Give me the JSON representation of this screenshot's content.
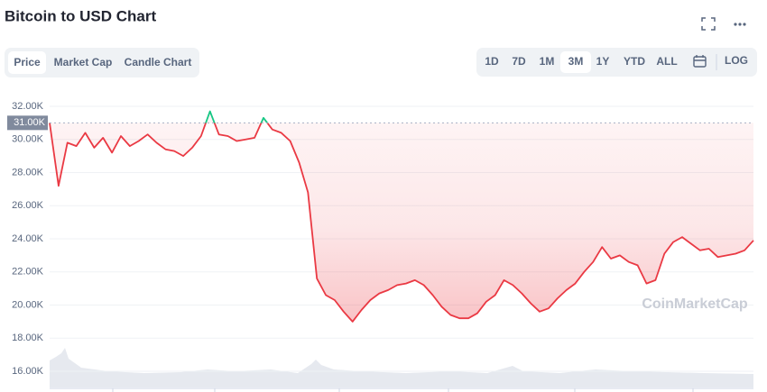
{
  "header": {
    "title": "Bitcoin to USD Chart"
  },
  "tabs": [
    "Price",
    "Market Cap",
    "Candle Chart"
  ],
  "ranges": [
    "1D",
    "7D",
    "1M",
    "3M",
    "1Y",
    "YTD",
    "ALL"
  ],
  "scale_button": "LOG",
  "chart_data": {
    "type": "line",
    "watermark": "CoinMarketCap",
    "series": [
      {
        "name": "Price",
        "color": "#ea3943",
        "color_above_reference": "#16c784",
        "values": [
          31.0,
          27.2,
          29.8,
          29.6,
          30.4,
          29.5,
          30.1,
          29.2,
          30.2,
          29.6,
          29.9,
          30.3,
          29.8,
          29.4,
          29.3,
          29.0,
          29.5,
          30.2,
          31.7,
          30.3,
          30.2,
          29.9,
          30.0,
          30.1,
          31.3,
          30.6,
          30.4,
          29.9,
          28.6,
          26.8,
          21.6,
          20.6,
          20.3,
          19.6,
          19.0,
          19.7,
          20.3,
          20.7,
          20.9,
          21.2,
          21.3,
          21.5,
          21.2,
          20.6,
          19.9,
          19.4,
          19.2,
          19.2,
          19.5,
          20.2,
          20.6,
          21.5,
          21.2,
          20.7,
          20.1,
          19.6,
          19.8,
          20.4,
          20.9,
          21.3,
          22.0,
          22.6,
          23.5,
          22.8,
          23.0,
          22.6,
          22.4,
          21.3,
          21.5,
          23.1,
          23.8,
          24.1,
          23.7,
          23.3,
          23.4,
          22.9,
          23.0,
          23.1,
          23.3,
          23.9
        ]
      }
    ],
    "reference": {
      "value": 31,
      "label": "31.00K"
    },
    "ylim": [
      15.2,
      32.4
    ],
    "yticks": [
      {
        "value": 16,
        "label": "16.00K"
      },
      {
        "value": 18,
        "label": "18.00K"
      },
      {
        "value": 20,
        "label": "20.00K"
      },
      {
        "value": 22,
        "label": "22.00K"
      },
      {
        "value": 24,
        "label": "24.00K"
      },
      {
        "value": 26,
        "label": "26.00K"
      },
      {
        "value": 28,
        "label": "28.00K"
      },
      {
        "value": 30,
        "label": "30.00K"
      },
      {
        "value": 32,
        "label": "32.00K"
      }
    ],
    "grid": true
  }
}
